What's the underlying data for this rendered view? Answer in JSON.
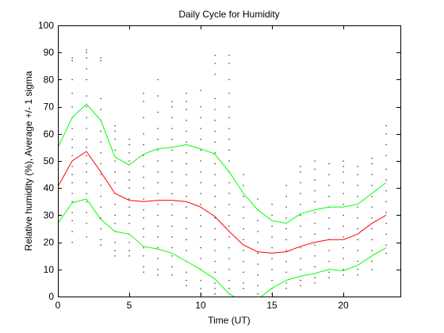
{
  "chart_data": {
    "type": "line",
    "title": "Daily Cycle for Humidity",
    "xlabel": "Time (UT)",
    "ylabel": "Relative humidity (%), Average +/- 1 sigma",
    "xlim": [
      0,
      24
    ],
    "ylim": [
      0,
      100
    ],
    "xticks": [
      0,
      5,
      10,
      15,
      20
    ],
    "yticks": [
      0,
      10,
      20,
      30,
      40,
      50,
      60,
      70,
      80,
      90,
      100
    ],
    "grid": false,
    "legend": "none",
    "x": [
      0,
      1,
      2,
      3,
      4,
      5,
      6,
      7,
      8,
      9,
      10,
      11,
      12,
      13,
      14,
      15,
      16,
      17,
      18,
      19,
      20,
      21,
      22,
      23
    ],
    "series": [
      {
        "color": "#00ff00",
        "values": [
          55,
          66,
          71,
          65,
          51.5,
          48.5,
          52.5,
          54.5,
          55,
          56,
          54.5,
          52.5,
          46,
          38,
          32,
          28,
          27,
          30.5,
          32,
          33,
          33,
          34,
          38,
          42
        ]
      },
      {
        "color": "#ff0000",
        "values": [
          40.5,
          50,
          53.5,
          46,
          38,
          35.5,
          35,
          35.5,
          35.5,
          35,
          33,
          29.5,
          24,
          19,
          16.5,
          16,
          16.5,
          18.5,
          20,
          21,
          21,
          23,
          27,
          30
        ]
      },
      {
        "color": "#00ff00",
        "values": [
          27,
          34.5,
          36,
          28.5,
          24,
          23,
          18.5,
          17.5,
          16,
          13,
          10,
          6.5,
          1,
          -2,
          -1,
          3,
          6,
          7.5,
          8.5,
          10,
          9.5,
          11.5,
          15,
          18
        ]
      }
    ],
    "scatter": {
      "color": "#000000",
      "columns": [
        {
          "x": 0,
          "y": [
            14,
            18,
            22,
            25,
            28,
            31,
            33,
            36,
            38,
            41,
            44,
            47,
            51,
            55,
            58,
            62
          ]
        },
        {
          "x": 1,
          "y": [
            20,
            24,
            28,
            31,
            35,
            38,
            42,
            45,
            48,
            52,
            55,
            58,
            62,
            66,
            70,
            75,
            80,
            87,
            88
          ]
        },
        {
          "x": 2,
          "y": [
            22,
            27,
            31,
            35,
            38,
            42,
            46,
            49,
            52,
            55,
            58,
            62,
            66,
            70,
            74,
            80,
            84,
            88,
            90,
            91
          ]
        },
        {
          "x": 3,
          "y": [
            19,
            21,
            25,
            29,
            33,
            37,
            41,
            45,
            49,
            53,
            57,
            61,
            65,
            69,
            73,
            87,
            88
          ]
        },
        {
          "x": 4,
          "y": [
            15,
            17,
            20,
            24,
            27,
            30,
            34,
            38,
            42,
            46,
            50,
            54,
            58,
            61,
            63
          ]
        },
        {
          "x": 5,
          "y": [
            15,
            17,
            20,
            23,
            27,
            30,
            33,
            36,
            40,
            43,
            46,
            50,
            53,
            56,
            58
          ]
        },
        {
          "x": 6,
          "y": [
            9,
            11,
            15,
            18,
            22,
            25,
            29,
            32,
            36,
            40,
            44,
            48,
            52,
            56,
            60,
            66,
            72,
            75
          ]
        },
        {
          "x": 7,
          "y": [
            8,
            10,
            14,
            18,
            22,
            26,
            30,
            34,
            38,
            42,
            46,
            50,
            54,
            58,
            62,
            68,
            74,
            80
          ]
        },
        {
          "x": 8,
          "y": [
            8,
            11,
            15,
            18,
            22,
            26,
            30,
            34,
            38,
            42,
            46,
            50,
            54,
            58,
            62,
            66,
            70,
            72
          ]
        },
        {
          "x": 9,
          "y": [
            4,
            6,
            9,
            13,
            17,
            21,
            25,
            29,
            33,
            37,
            41,
            45,
            49,
            53,
            57,
            61,
            65,
            69,
            72,
            75
          ]
        },
        {
          "x": 10,
          "y": [
            1,
            3,
            6,
            10,
            14,
            18,
            22,
            26,
            30,
            34,
            38,
            42,
            46,
            50,
            54,
            58,
            62,
            66,
            70,
            76
          ]
        },
        {
          "x": 11,
          "y": [
            1,
            3,
            5,
            9,
            13,
            17,
            21,
            25,
            29,
            33,
            37,
            41,
            45,
            49,
            53,
            57,
            61,
            65,
            69,
            73,
            82,
            86,
            89
          ]
        },
        {
          "x": 12,
          "y": [
            1,
            3,
            6,
            10,
            14,
            18,
            22,
            26,
            30,
            34,
            38,
            42,
            46,
            50,
            54,
            58,
            62,
            66,
            70,
            75,
            80,
            86,
            89
          ]
        },
        {
          "x": 13,
          "y": [
            3,
            5,
            9,
            13,
            17,
            21,
            25,
            29,
            33,
            37,
            41,
            45
          ]
        },
        {
          "x": 14,
          "y": [
            1,
            4,
            8,
            12,
            16,
            20,
            24,
            28,
            32,
            36
          ]
        },
        {
          "x": 15,
          "y": [
            1,
            3,
            6,
            10,
            14,
            18,
            22,
            26,
            30,
            34
          ]
        },
        {
          "x": 16,
          "y": [
            3,
            5,
            9,
            13,
            17,
            21,
            25,
            29,
            33,
            37,
            41
          ]
        },
        {
          "x": 17,
          "y": [
            4,
            6,
            10,
            14,
            18,
            22,
            26,
            30,
            34,
            38,
            42,
            46,
            48
          ]
        },
        {
          "x": 18,
          "y": [
            5,
            7,
            11,
            15,
            19,
            23,
            27,
            31,
            35,
            39,
            43,
            47,
            50
          ]
        },
        {
          "x": 19,
          "y": [
            7,
            9,
            13,
            17,
            21,
            25,
            29,
            33,
            37,
            41,
            45,
            49
          ]
        },
        {
          "x": 20,
          "y": [
            8,
            10,
            14,
            18,
            22,
            26,
            30,
            34,
            38,
            42,
            46,
            48,
            50
          ]
        },
        {
          "x": 21,
          "y": [
            8,
            10,
            13,
            17,
            21,
            25,
            29,
            33,
            37,
            41,
            45,
            48
          ]
        },
        {
          "x": 22,
          "y": [
            10,
            13,
            17,
            21,
            25,
            29,
            33,
            37,
            41,
            45,
            49,
            51
          ]
        },
        {
          "x": 23,
          "y": [
            16,
            19,
            23,
            27,
            31,
            35,
            39,
            43,
            47,
            52,
            56,
            60,
            63
          ]
        }
      ]
    }
  }
}
